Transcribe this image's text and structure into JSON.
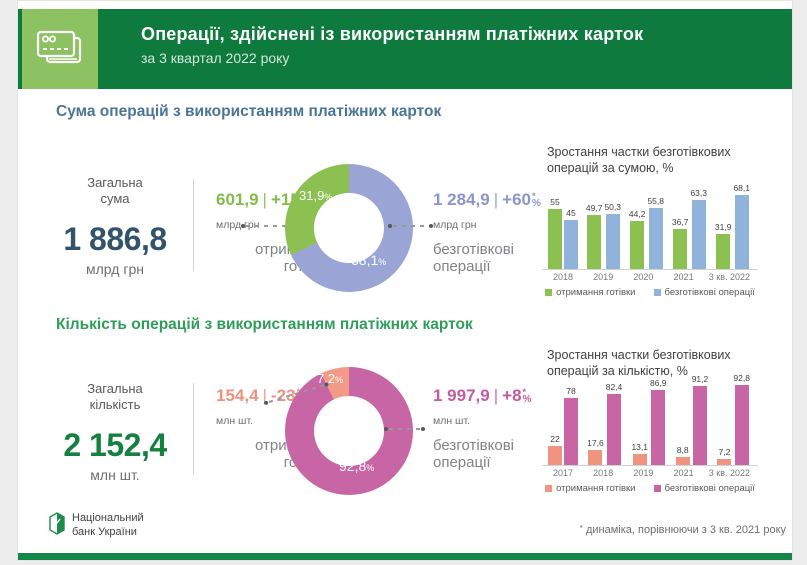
{
  "header": {
    "title": "Операції, здійснені із використанням платіжних карток",
    "subtitle": "за 3 квартал 2022 року",
    "icon": "payment-cards-icon"
  },
  "misc": {
    "percent": "%",
    "asterisk": "*",
    "separator": "|"
  },
  "colors": {
    "header_green": "#0e7a3e",
    "header_light_green": "#8dc262",
    "footer_stripe_green": "#15864a",
    "bar_green": "#8cc152",
    "bar_blue": "#8fb3da",
    "donut_lavender": "#9aa5d6",
    "bar_salmon": "#f0937f",
    "bar_magenta": "#c765a5"
  },
  "sections": [
    {
      "title": "Сума операцій з використанням платіжних карток",
      "title_color": "#4a7598",
      "total": {
        "label": "Загальна\nсума",
        "value": "1 886,8",
        "unit": "млрд грн",
        "color": "#33536b"
      },
      "cash": {
        "value": "601,9",
        "change": "+15",
        "unit": "млрд грн",
        "label": "отримання\nготівки",
        "color": "#82bb4a"
      },
      "cashless": {
        "value": "1 284,9",
        "change": "+60",
        "unit": "млрд грн",
        "label": "безготівкові\nоперації",
        "color": "#8b95cc"
      }
    },
    {
      "title": "Кількість операцій з використанням платіжних карток",
      "title_color": "#2f9e5a",
      "total": {
        "label": "Загальна\nкількість",
        "value": "2 152,4",
        "unit": "млн шт.",
        "color": "#15803f"
      },
      "cash": {
        "value": "154,4",
        "change": "-23",
        "unit": "млн шт.",
        "label": "отримання\nготівки",
        "color": "#f0907e"
      },
      "cashless": {
        "value": "1 997,9",
        "change": "+8",
        "unit": "млн шт.",
        "label": "безготівкові\nоперації",
        "color": "#c45ba0"
      }
    }
  ],
  "chart_data": [
    {
      "type": "pie",
      "id": "donut-sum-structure",
      "unit": "%",
      "slices": [
        {
          "name": "безготівкові операції",
          "value": 68.1,
          "display": "68,1",
          "color": "#9aa5d6"
        },
        {
          "name": "отримання готівки",
          "value": 31.9,
          "display": "31,9",
          "color": "#8cc152"
        }
      ]
    },
    {
      "type": "bar",
      "id": "cashless-share-by-sum",
      "title": "Зростання частки безготівкових\nоперацій за сумою, %",
      "categories": [
        "2018",
        "2019",
        "2020",
        "2021",
        "3 кв. 2022"
      ],
      "series": [
        {
          "name": "отримання готівки",
          "color": "#8cc152",
          "values": [
            55,
            49.7,
            44.2,
            36.7,
            31.9
          ],
          "labels": [
            "55",
            "49,7",
            "44,2",
            "36,7",
            "31,9"
          ]
        },
        {
          "name": "безготівкові операції",
          "color": "#8fb3da",
          "values": [
            45,
            50.3,
            55.8,
            63.3,
            68.1
          ],
          "labels": [
            "45",
            "50,3",
            "55,8",
            "63,3",
            "68,1"
          ]
        }
      ],
      "ylim": [
        0,
        70
      ],
      "grid": false,
      "legend_position": "bottom"
    },
    {
      "type": "pie",
      "id": "donut-count-structure",
      "unit": "%",
      "slices": [
        {
          "name": "безготівкові операції",
          "value": 92.8,
          "display": "92,8",
          "color": "#c765a5"
        },
        {
          "name": "отримання готівки",
          "value": 7.2,
          "display": "7,2",
          "color": "#f29a85"
        }
      ]
    },
    {
      "type": "bar",
      "id": "cashless-share-by-count",
      "title": "Зростання частки безготівкових\nоперацій за кількістю, %",
      "categories": [
        "2017",
        "2018",
        "2019",
        "2021",
        "3 кв. 2022"
      ],
      "series": [
        {
          "name": "отримання готівки",
          "color": "#f0937f",
          "values": [
            22,
            17.6,
            13.1,
            8.8,
            7.2
          ],
          "labels": [
            "22",
            "17,6",
            "13,1",
            "8,8",
            "7,2"
          ]
        },
        {
          "name": "безготівкові операції",
          "color": "#c765a5",
          "values": [
            78,
            82.4,
            86.9,
            91.2,
            92.8
          ],
          "labels": [
            "78",
            "82,4",
            "86,9",
            "91,2",
            "92,8"
          ]
        }
      ],
      "ylim": [
        0,
        97
      ],
      "grid": false,
      "legend_position": "bottom"
    }
  ],
  "footer": {
    "logo_text": "Національний\nбанк України",
    "footnote": "динаміка, порівнюючи з 3 кв. 2021 року"
  }
}
